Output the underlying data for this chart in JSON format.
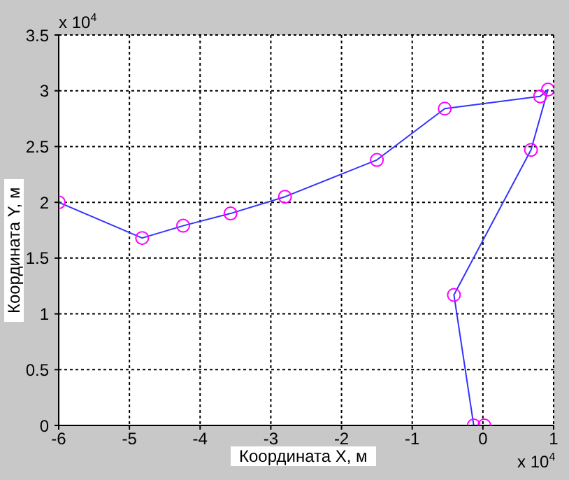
{
  "chart_data": {
    "type": "line",
    "xlabel": "Координата X, м",
    "ylabel": "Координата Y, м",
    "x": [
      0.02,
      -0.13,
      -0.41,
      0.68,
      0.92,
      0.81,
      -0.54,
      -1.5,
      -2.8,
      -3.57,
      -4.24,
      -4.82,
      -6
    ],
    "series": [
      {
        "color": "#3333ff",
        "values": [
          0,
          0,
          1.17,
          2.47,
          3.01,
          2.95,
          2.84,
          2.38,
          2.05,
          1.9,
          1.79,
          1.68,
          2.0
        ]
      }
    ],
    "xlim": [
      -6,
      1
    ],
    "xticks": [
      -6,
      -5,
      -4,
      -3,
      -2,
      -1,
      0,
      1
    ],
    "ylim": [
      0,
      3.5
    ],
    "yticks": [
      0,
      0.5,
      1,
      1.5,
      2,
      2.5,
      3,
      3.5
    ],
    "annotations": [
      "x 10$^{4}$",
      "x 10$^{4}$"
    ],
    "grid": true,
    "marker": "circle",
    "line_style": "solid"
  }
}
